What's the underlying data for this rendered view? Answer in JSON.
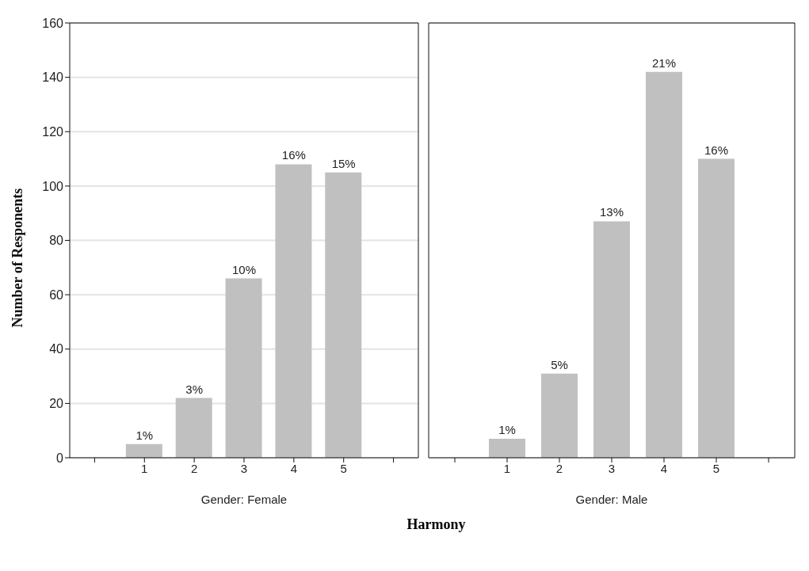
{
  "chart_data": [
    {
      "type": "bar",
      "categories": [
        null,
        "1",
        "2",
        "3",
        "4",
        "5",
        null
      ],
      "values": [
        null,
        5,
        22,
        66,
        108,
        105,
        null
      ],
      "color": "#c0c0c0",
      "ylim": [
        0,
        160
      ],
      "yticks": [
        0,
        20,
        40,
        60,
        80,
        100,
        120,
        140,
        160
      ],
      "grid": "y",
      "xlabel": "Gender: Female",
      "ylabel": "Number of Responents",
      "annotations": [
        "Harmony",
        {
          "text": "1%",
          "x": "1",
          "y": 5
        },
        {
          "text": "3%",
          "x": "2",
          "y": 22
        },
        {
          "text": "10%",
          "x": "3",
          "y": 66
        },
        {
          "text": "16%",
          "x": "4",
          "y": 108
        },
        {
          "text": "15%",
          "x": "5",
          "y": 105
        }
      ]
    },
    {
      "type": "bar",
      "categories": [
        null,
        "1",
        "2",
        "3",
        "4",
        "5",
        null
      ],
      "values": [
        null,
        7,
        31,
        87,
        142,
        110,
        null
      ],
      "color": "#c0c0c0",
      "ylim": [
        0,
        160
      ],
      "yticks": [
        0,
        20,
        40,
        60,
        80,
        100,
        120,
        140,
        160
      ],
      "grid": "y",
      "xlabel": "Gender: Male",
      "tick_labels": "x",
      "annotations": [
        {
          "text": "1%",
          "x": "1",
          "y": 7
        },
        {
          "text": "5%",
          "x": "2",
          "y": 31
        },
        {
          "text": "13%",
          "x": "3",
          "y": 87
        },
        {
          "text": "21%",
          "x": "4",
          "y": 142
        },
        {
          "text": "16%",
          "x": "5",
          "y": 110
        }
      ]
    }
  ]
}
